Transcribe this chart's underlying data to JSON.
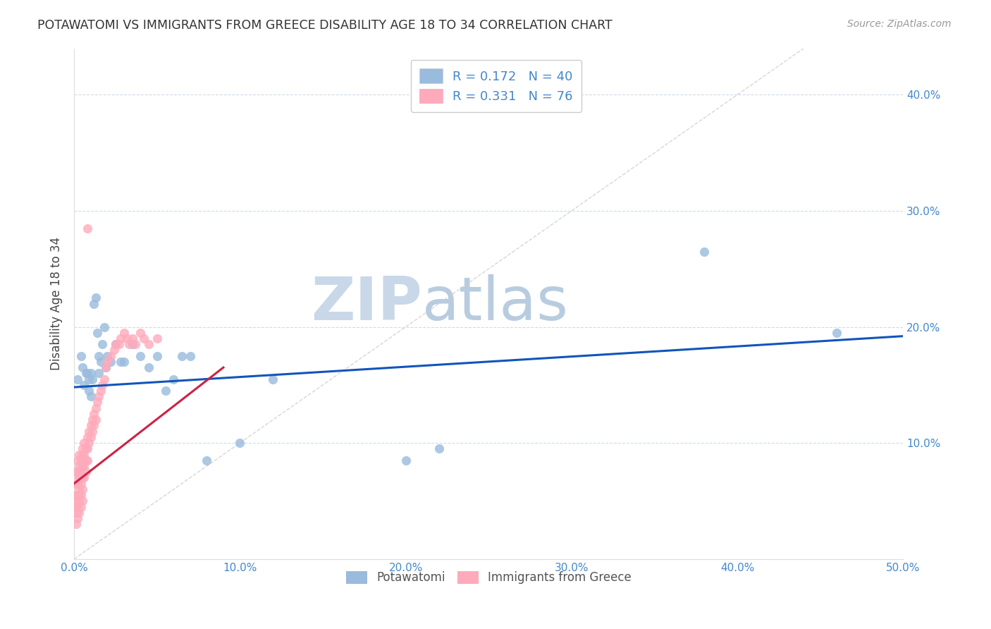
{
  "title": "POTAWATOMI VS IMMIGRANTS FROM GREECE DISABILITY AGE 18 TO 34 CORRELATION CHART",
  "source": "Source: ZipAtlas.com",
  "ylabel": "Disability Age 18 to 34",
  "xlim": [
    0.0,
    0.5
  ],
  "ylim": [
    0.0,
    0.44
  ],
  "xticks": [
    0.0,
    0.1,
    0.2,
    0.3,
    0.4,
    0.5
  ],
  "yticks": [
    0.0,
    0.1,
    0.2,
    0.3,
    0.4
  ],
  "xticklabels": [
    "0.0%",
    "10.0%",
    "20.0%",
    "30.0%",
    "40.0%",
    "50.0%"
  ],
  "yticklabels_right": [
    "",
    "10.0%",
    "20.0%",
    "30.0%",
    "40.0%"
  ],
  "color_blue": "#99BBDD",
  "color_pink": "#FFAABB",
  "trendline_blue": "#1155BB",
  "trendline_pink": "#CC2244",
  "legend_R_blue": "0.172",
  "legend_N_blue": "40",
  "legend_R_pink": "0.331",
  "legend_N_pink": "76",
  "legend_text_color": "#4488CC",
  "watermark_zip_color": "#C8D8E8",
  "watermark_atlas_color": "#B8CCE0",
  "blue_scatter_x": [
    0.002,
    0.004,
    0.005,
    0.006,
    0.007,
    0.008,
    0.009,
    0.009,
    0.01,
    0.01,
    0.011,
    0.012,
    0.013,
    0.014,
    0.015,
    0.015,
    0.016,
    0.017,
    0.018,
    0.019,
    0.02,
    0.022,
    0.025,
    0.028,
    0.03,
    0.035,
    0.04,
    0.045,
    0.05,
    0.055,
    0.06,
    0.065,
    0.07,
    0.08,
    0.1,
    0.12,
    0.2,
    0.22,
    0.38,
    0.46
  ],
  "blue_scatter_y": [
    0.155,
    0.175,
    0.165,
    0.15,
    0.16,
    0.16,
    0.155,
    0.145,
    0.16,
    0.14,
    0.155,
    0.22,
    0.225,
    0.195,
    0.175,
    0.16,
    0.17,
    0.185,
    0.2,
    0.165,
    0.175,
    0.17,
    0.185,
    0.17,
    0.17,
    0.185,
    0.175,
    0.165,
    0.175,
    0.145,
    0.155,
    0.175,
    0.175,
    0.085,
    0.1,
    0.155,
    0.085,
    0.095,
    0.265,
    0.195
  ],
  "pink_scatter_x": [
    0.001,
    0.001,
    0.001,
    0.001,
    0.001,
    0.001,
    0.001,
    0.002,
    0.002,
    0.002,
    0.002,
    0.002,
    0.002,
    0.002,
    0.002,
    0.003,
    0.003,
    0.003,
    0.003,
    0.003,
    0.003,
    0.003,
    0.003,
    0.004,
    0.004,
    0.004,
    0.004,
    0.004,
    0.005,
    0.005,
    0.005,
    0.005,
    0.005,
    0.005,
    0.006,
    0.006,
    0.006,
    0.006,
    0.007,
    0.007,
    0.007,
    0.008,
    0.008,
    0.008,
    0.009,
    0.009,
    0.01,
    0.01,
    0.011,
    0.011,
    0.012,
    0.012,
    0.013,
    0.013,
    0.014,
    0.015,
    0.016,
    0.017,
    0.018,
    0.019,
    0.02,
    0.022,
    0.024,
    0.025,
    0.027,
    0.028,
    0.03,
    0.032,
    0.033,
    0.035,
    0.037,
    0.04,
    0.042,
    0.045,
    0.05,
    0.008
  ],
  "pink_scatter_y": [
    0.055,
    0.045,
    0.065,
    0.075,
    0.05,
    0.04,
    0.03,
    0.055,
    0.065,
    0.075,
    0.085,
    0.055,
    0.045,
    0.035,
    0.065,
    0.08,
    0.09,
    0.07,
    0.06,
    0.05,
    0.04,
    0.055,
    0.07,
    0.085,
    0.075,
    0.065,
    0.055,
    0.045,
    0.09,
    0.08,
    0.07,
    0.06,
    0.05,
    0.095,
    0.1,
    0.09,
    0.08,
    0.07,
    0.095,
    0.085,
    0.075,
    0.105,
    0.095,
    0.085,
    0.11,
    0.1,
    0.115,
    0.105,
    0.12,
    0.11,
    0.125,
    0.115,
    0.13,
    0.12,
    0.135,
    0.14,
    0.145,
    0.15,
    0.155,
    0.165,
    0.17,
    0.175,
    0.18,
    0.185,
    0.185,
    0.19,
    0.195,
    0.19,
    0.185,
    0.19,
    0.185,
    0.195,
    0.19,
    0.185,
    0.19,
    0.285
  ]
}
